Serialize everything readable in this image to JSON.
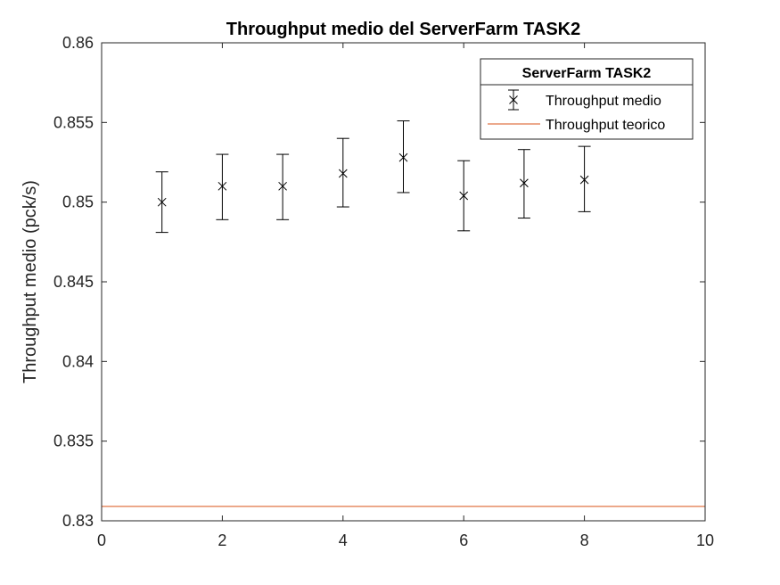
{
  "chart_data": {
    "type": "scatter",
    "title": "Throughput medio del ServerFarm TASK2",
    "xlabel": "",
    "ylabel": "Throughput medio (pck/s)",
    "xlim": [
      0,
      10
    ],
    "ylim": [
      0.83,
      0.86
    ],
    "xticks": [
      0,
      2,
      4,
      6,
      8,
      10
    ],
    "xtick_labels": [
      "0",
      "2",
      "4",
      "6",
      "8",
      "10"
    ],
    "yticks": [
      0.83,
      0.835,
      0.84,
      0.845,
      0.85,
      0.855,
      0.86
    ],
    "ytick_labels": [
      "0.83",
      "0.835",
      "0.84",
      "0.845",
      "0.85",
      "0.855",
      "0.86"
    ],
    "grid": false,
    "legend": {
      "title": "ServerFarm TASK2",
      "position": "top-right",
      "entries": [
        "Throughput medio",
        "Throughput teorico"
      ]
    },
    "series": [
      {
        "name": "Throughput medio",
        "kind": "errorbar",
        "marker": "x",
        "color": "#000000",
        "x": [
          1,
          2,
          3,
          4,
          5,
          6,
          7,
          8
        ],
        "y": [
          0.85,
          0.851,
          0.851,
          0.8518,
          0.8528,
          0.8504,
          0.8512,
          0.8514
        ],
        "y_low": [
          0.8481,
          0.8489,
          0.8489,
          0.8497,
          0.8506,
          0.8482,
          0.849,
          0.8494
        ],
        "y_high": [
          0.8519,
          0.853,
          0.853,
          0.854,
          0.8551,
          0.8526,
          0.8533,
          0.8535
        ]
      },
      {
        "name": "Throughput teorico",
        "kind": "hline",
        "color": "#d95319",
        "y": 0.8309
      }
    ]
  }
}
